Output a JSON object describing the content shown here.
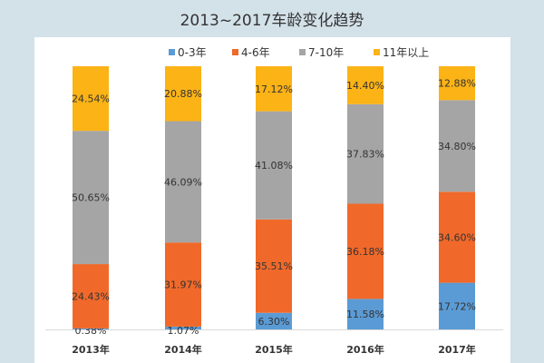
{
  "chart_data": {
    "type": "bar",
    "stacked": true,
    "title": "2013~2017车龄变化趋势",
    "categories": [
      "2013年",
      "2014年",
      "2015年",
      "2016年",
      "2017年"
    ],
    "series": [
      {
        "name": "0-3年",
        "color": "#5b9bd5",
        "values": [
          0.38,
          1.07,
          6.3,
          11.58,
          17.72
        ]
      },
      {
        "name": "4-6年",
        "color": "#f0692a",
        "values": [
          24.43,
          31.97,
          35.51,
          36.18,
          34.6
        ]
      },
      {
        "name": "7-10年",
        "color": "#a5a5a5",
        "values": [
          50.65,
          46.09,
          41.08,
          37.83,
          34.8
        ]
      },
      {
        "name": "11年以上",
        "color": "#fbb316",
        "values": [
          24.54,
          20.88,
          17.12,
          14.4,
          12.88
        ]
      }
    ],
    "ylim": [
      0,
      100
    ],
    "value_format": "%",
    "legend": "top",
    "grid": false
  }
}
